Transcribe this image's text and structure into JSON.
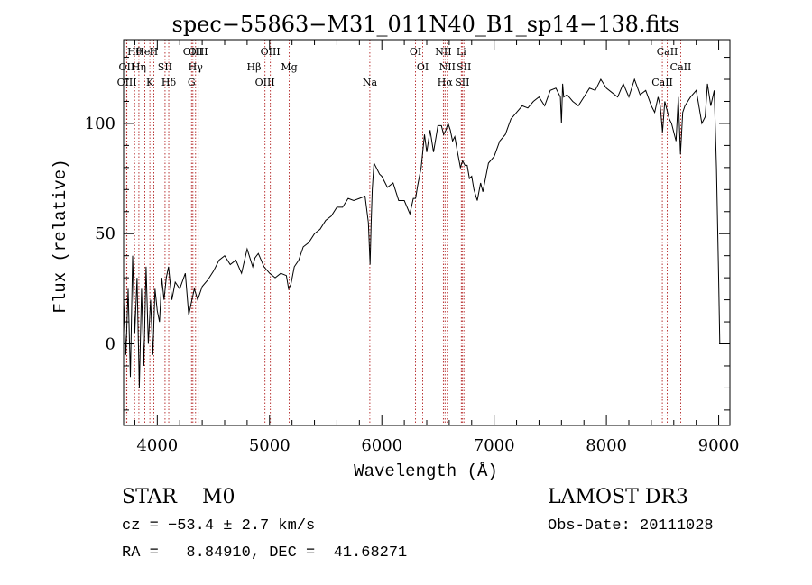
{
  "chart_data": {
    "type": "line",
    "title": "spec−55863−M31_011N40_B1_sp14−138.fits",
    "xlabel": "Wavelength (Å)",
    "ylabel": "Flux (relative)",
    "xlim": [
      3700,
      9100
    ],
    "ylim": [
      -37,
      138
    ],
    "x_ticks": [
      4000,
      5000,
      6000,
      7000,
      8000,
      9000
    ],
    "x_tick_labels": [
      "4000",
      "5000",
      "6000",
      "7000",
      "8000",
      "9000"
    ],
    "y_ticks": [
      0,
      50,
      100
    ],
    "y_tick_labels": [
      "0",
      "50",
      "100"
    ],
    "grid": false,
    "series": [
      {
        "name": "spectrum",
        "color": "#000000",
        "x": [
          3700,
          3720,
          3740,
          3760,
          3780,
          3800,
          3820,
          3840,
          3860,
          3880,
          3900,
          3920,
          3940,
          3960,
          3980,
          4000,
          4020,
          4040,
          4060,
          4080,
          4100,
          4130,
          4160,
          4200,
          4250,
          4280,
          4300,
          4330,
          4360,
          4400,
          4450,
          4500,
          4550,
          4600,
          4650,
          4700,
          4750,
          4800,
          4850,
          4870,
          4900,
          4950,
          5000,
          5050,
          5100,
          5150,
          5170,
          5190,
          5220,
          5260,
          5300,
          5350,
          5400,
          5450,
          5500,
          5550,
          5600,
          5650,
          5700,
          5750,
          5800,
          5850,
          5880,
          5895,
          5905,
          5915,
          5930,
          5950,
          5980,
          6000,
          6050,
          6100,
          6150,
          6200,
          6250,
          6280,
          6300,
          6320,
          6350,
          6380,
          6400,
          6430,
          6460,
          6500,
          6530,
          6550,
          6570,
          6590,
          6610,
          6630,
          6650,
          6670,
          6700,
          6720,
          6740,
          6760,
          6780,
          6800,
          6820,
          6850,
          6880,
          6900,
          6950,
          7000,
          7050,
          7100,
          7150,
          7200,
          7250,
          7300,
          7350,
          7400,
          7450,
          7500,
          7550,
          7590,
          7600,
          7610,
          7620,
          7650,
          7700,
          7750,
          7800,
          7850,
          7900,
          7950,
          8000,
          8050,
          8100,
          8150,
          8200,
          8250,
          8300,
          8350,
          8400,
          8430,
          8460,
          8480,
          8500,
          8520,
          8540,
          8560,
          8580,
          8600,
          8620,
          8640,
          8660,
          8680,
          8700,
          8750,
          8800,
          8850,
          8880,
          8900,
          8930,
          8960,
          8980,
          9000,
          9010
        ],
        "y": [
          20,
          -5,
          25,
          -15,
          40,
          5,
          30,
          -20,
          25,
          -10,
          35,
          0,
          20,
          -5,
          25,
          15,
          10,
          30,
          20,
          30,
          35,
          20,
          28,
          25,
          32,
          13,
          18,
          25,
          20,
          26,
          29,
          33,
          38,
          40,
          36,
          38,
          32,
          43,
          35,
          39,
          41,
          35,
          32,
          30,
          32,
          31,
          25,
          27,
          35,
          38,
          44,
          46,
          50,
          52,
          56,
          58,
          62,
          62,
          66,
          65,
          66,
          67,
          55,
          36,
          55,
          70,
          82,
          80,
          77,
          76,
          71,
          73,
          65,
          65,
          59,
          66,
          66,
          72,
          80,
          95,
          87,
          97,
          87,
          99,
          99,
          95,
          97,
          100,
          97,
          92,
          94,
          88,
          80,
          83,
          81,
          81,
          75,
          76,
          70,
          65,
          73,
          69,
          82,
          85,
          92,
          95,
          102,
          105,
          108,
          107,
          110,
          112,
          108,
          115,
          116,
          112,
          100,
          118,
          112,
          113,
          110,
          108,
          112,
          116,
          115,
          120,
          116,
          114,
          112,
          118,
          112,
          120,
          113,
          115,
          108,
          105,
          112,
          108,
          96,
          110,
          106,
          102,
          100,
          96,
          92,
          112,
          86,
          105,
          108,
          112,
          115,
          100,
          103,
          118,
          108,
          115,
          80,
          28,
          0
        ]
      }
    ],
    "line_markers": [
      {
        "label": "Hθ",
        "x": 3798
      },
      {
        "label": "OII",
        "x": 3727
      },
      {
        "label": "OIII",
        "x": 3729
      },
      {
        "label": "HeI",
        "x": 3889
      },
      {
        "label": "Hη",
        "x": 3836
      },
      {
        "label": "K",
        "x": 3934
      },
      {
        "label": "H",
        "x": 3969
      },
      {
        "label": "SII",
        "x": 4069
      },
      {
        "label": "Hδ",
        "x": 4102
      },
      {
        "label": "OIII",
        "x": 4317
      },
      {
        "label": "Hγ",
        "x": 4341
      },
      {
        "label": "G",
        "x": 4305
      },
      {
        "label": "OIII",
        "x": 4364
      },
      {
        "label": "Hβ",
        "x": 4861
      },
      {
        "label": "OIII",
        "x": 4959
      },
      {
        "label": "OIII",
        "x": 5007
      },
      {
        "label": "Mg",
        "x": 5175
      },
      {
        "label": "Na",
        "x": 5893
      },
      {
        "label": "OI",
        "x": 6300
      },
      {
        "label": "OI",
        "x": 6364
      },
      {
        "label": "Hα",
        "x": 6563
      },
      {
        "label": "NII",
        "x": 6548
      },
      {
        "label": "NII",
        "x": 6583
      },
      {
        "label": "SII",
        "x": 6716
      },
      {
        "label": "Li",
        "x": 6708
      },
      {
        "label": "SII",
        "x": 6731
      },
      {
        "label": "CaII",
        "x": 8498
      },
      {
        "label": "CaII",
        "x": 8542
      },
      {
        "label": "CaII",
        "x": 8662
      }
    ]
  },
  "info": {
    "class_line": "STAR    M0",
    "cz_line": "cz = −53.4 ± 2.7 km/s",
    "radec_line": "RA =   8.84910, DEC =  41.68271",
    "survey": "LAMOST DR3",
    "obs_date": "Obs-Date: 20111028"
  }
}
